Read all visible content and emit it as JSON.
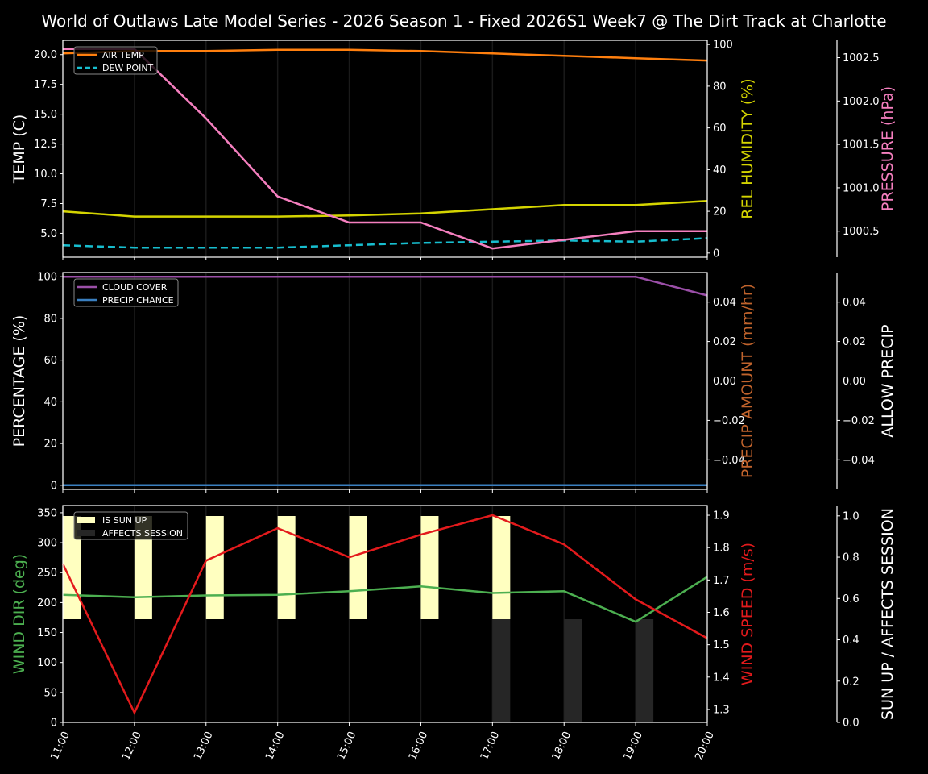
{
  "title": "World of Outlaws Late Model Series - 2026 Season 1 - Fixed 2026S1 Week7 @ The Dirt Track at Charlotte",
  "chart_data": [
    {
      "type": "line",
      "panel": "temperature",
      "x": [
        "11:00",
        "12:00",
        "13:00",
        "14:00",
        "15:00",
        "16:00",
        "17:00",
        "18:00",
        "19:00",
        "20:00"
      ],
      "ylabel": "TEMP (C)",
      "ylim": [
        3.0,
        21.2
      ],
      "yticks": [
        "5.0",
        "7.5",
        "10.0",
        "12.5",
        "15.0",
        "17.5",
        "20.0"
      ],
      "y2label": "REL HUMIDITY (%)",
      "y2lim": [
        -2,
        102
      ],
      "y2ticks": [
        "0",
        "20",
        "40",
        "60",
        "80",
        "100"
      ],
      "y3label": "PRESSURE (hPa)",
      "y3lim": [
        1000.2,
        1002.7
      ],
      "y3ticks": [
        "1000.5",
        "1001.0",
        "1001.5",
        "1002.0",
        "1002.5"
      ],
      "legend": [
        "AIR TEMP",
        "DEW POINT"
      ],
      "series": [
        {
          "name": "AIR TEMP",
          "axis": "left",
          "color": "#ff7f0e",
          "values": [
            20.1,
            20.3,
            20.3,
            20.4,
            20.4,
            20.3,
            20.1,
            19.9,
            19.7,
            19.5
          ]
        },
        {
          "name": "DEW POINT",
          "axis": "left",
          "color": "#17becf",
          "dashed": true,
          "values": [
            4.0,
            3.8,
            3.8,
            3.8,
            4.0,
            4.2,
            4.3,
            4.4,
            4.3,
            4.6
          ]
        },
        {
          "name": "REL HUMIDITY",
          "axis": "right",
          "color": "#d4d400",
          "values": [
            20,
            17.5,
            17.5,
            17.5,
            18,
            19,
            21,
            23,
            23,
            25
          ]
        },
        {
          "name": "PRESSURE",
          "axis": "far-right",
          "color": "#f57fbf",
          "values": [
            1002.6,
            1002.6,
            1001.8,
            1000.9,
            1000.6,
            1000.6,
            1000.3,
            1000.4,
            1000.5,
            1000.5
          ]
        }
      ]
    },
    {
      "type": "line",
      "panel": "precipitation",
      "x": [
        "11:00",
        "12:00",
        "13:00",
        "14:00",
        "15:00",
        "16:00",
        "17:00",
        "18:00",
        "19:00",
        "20:00"
      ],
      "ylabel": "PERCENTAGE (%)",
      "ylim": [
        -2,
        102
      ],
      "yticks": [
        "0",
        "20",
        "40",
        "60",
        "80",
        "100"
      ],
      "y2label": "PRECIP AMOUNT (mm/hr)",
      "y2lim": [
        -0.055,
        0.055
      ],
      "y2ticks": [
        "−0.04",
        "−0.02",
        "0.00",
        "0.02",
        "0.04"
      ],
      "y3label": "ALLOW PRECIP",
      "y3lim": [
        -0.055,
        0.055
      ],
      "y3ticks": [
        "−0.04",
        "−0.02",
        "0.00",
        "0.02",
        "0.04"
      ],
      "legend": [
        "CLOUD COVER",
        "PRECIP CHANCE"
      ],
      "series": [
        {
          "name": "CLOUD COVER",
          "axis": "left",
          "color": "#9b4fa8",
          "values": [
            100,
            100,
            100,
            100,
            100,
            100,
            100,
            100,
            100,
            91
          ]
        },
        {
          "name": "PRECIP CHANCE",
          "axis": "left",
          "color": "#3a7fc0",
          "values": [
            0,
            0,
            0,
            0,
            0,
            0,
            0,
            0,
            0,
            0
          ]
        }
      ]
    },
    {
      "type": "line",
      "panel": "wind",
      "x": [
        "11:00",
        "12:00",
        "13:00",
        "14:00",
        "15:00",
        "16:00",
        "17:00",
        "18:00",
        "19:00",
        "20:00"
      ],
      "xlabels": [
        "11:00",
        "12:00",
        "13:00",
        "14:00",
        "15:00",
        "16:00",
        "17:00",
        "18:00",
        "19:00",
        "20:00"
      ],
      "ylabel": "WIND DIR (deg)",
      "ylim": [
        0,
        362
      ],
      "yticks": [
        "0",
        "50",
        "100",
        "150",
        "200",
        "250",
        "300",
        "350"
      ],
      "y2label": "WIND SPEED (m/s)",
      "y2lim": [
        1.26,
        1.93
      ],
      "y2ticks": [
        "1.3",
        "1.4",
        "1.5",
        "1.6",
        "1.7",
        "1.8",
        "1.9"
      ],
      "y3label": "SUN UP / AFFECTS SESSION",
      "y3lim": [
        0.0,
        1.05
      ],
      "y3ticks": [
        "0.0",
        "0.2",
        "0.4",
        "0.6",
        "0.8",
        "1.0"
      ],
      "legend": [
        "IS SUN UP",
        "AFFECTS SESSION"
      ],
      "series": [
        {
          "name": "WIND DIR",
          "axis": "left",
          "color": "#4caf50",
          "values": [
            213,
            209,
            212,
            213,
            219,
            227,
            216,
            219,
            168,
            243
          ]
        },
        {
          "name": "WIND SPEED",
          "axis": "right",
          "color": "#e31a1c",
          "values": [
            1.75,
            1.29,
            1.76,
            1.86,
            1.77,
            1.84,
            1.9,
            1.81,
            1.64,
            1.52
          ]
        },
        {
          "name": "IS SUN UP",
          "type": "bar",
          "axis": "far-right",
          "color": "#ffffc0",
          "values": [
            1,
            1,
            1,
            1,
            1,
            1,
            1,
            0,
            0,
            0
          ]
        },
        {
          "name": "AFFECTS SESSION",
          "type": "bar",
          "axis": "far-right",
          "color": "#262626",
          "values": [
            0,
            0,
            0,
            0,
            0,
            0,
            1,
            1,
            1,
            0
          ]
        }
      ]
    }
  ]
}
